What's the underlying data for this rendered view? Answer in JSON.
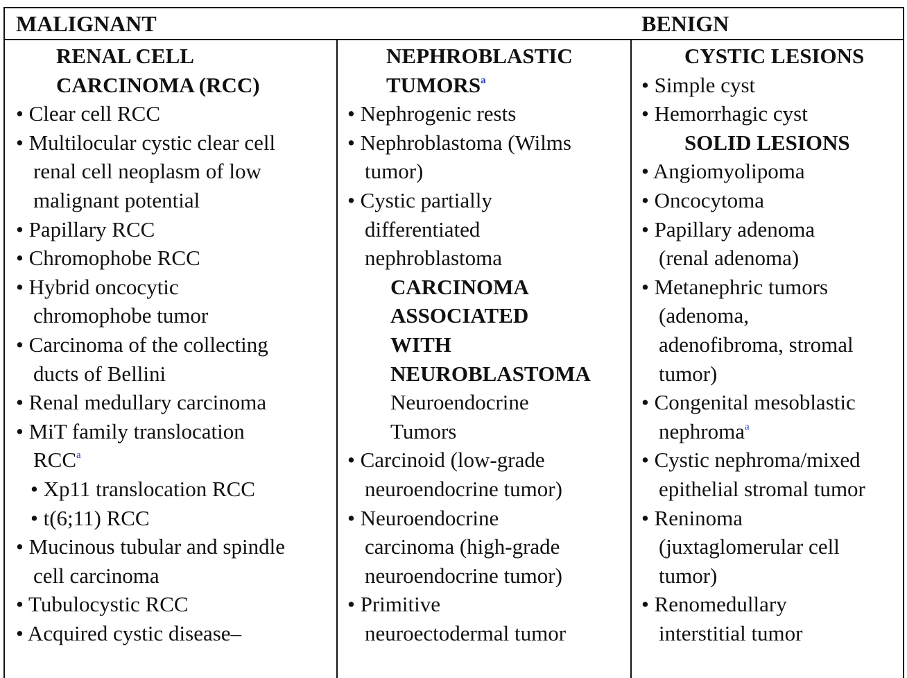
{
  "header": {
    "malignant": "MALIGNANT",
    "benign": "BENIGN"
  },
  "footnote_marker": "a",
  "col1": {
    "heading_line1": "RENAL CELL",
    "heading_line2": "CARCINOMA (RCC)",
    "l1": "• Clear cell RCC",
    "l2": "• Multilocular cystic clear cell",
    "l3": "renal cell neoplasm of low",
    "l4": "malignant potential",
    "l5": "• Papillary RCC",
    "l6": "• Chromophobe RCC",
    "l7": "• Hybrid oncocytic",
    "l8": "chromophobe tumor",
    "l9": "• Carcinoma of the collecting",
    "l10": "ducts of Bellini",
    "l11": "• Renal medullary carcinoma",
    "l12": "• MiT family translocation",
    "l13": "RCC",
    "l14": "• Xp11 translocation RCC",
    "l15": "• t(6;11) RCC",
    "l16": "• Mucinous tubular and spindle",
    "l17": "cell carcinoma",
    "l18": "• Tubulocystic RCC",
    "l19": "• Acquired cystic disease–"
  },
  "col2": {
    "heading_line1": "NEPHROBLASTIC",
    "heading_line2": "TUMORS",
    "l1": "• Nephrogenic rests",
    "l2": "• Nephroblastoma (Wilms",
    "l3": "tumor)",
    "l4": "• Cystic partially",
    "l5": "differentiated",
    "l6": "nephroblastoma",
    "h2_l1": "CARCINOMA",
    "h2_l2": "ASSOCIATED",
    "h2_l3": "WITH",
    "h2_l4": "NEUROBLASTOMA",
    "sub_l1": "Neuroendocrine",
    "sub_l2": "Tumors",
    "l7": "• Carcinoid (low-grade",
    "l8": "neuroendocrine tumor)",
    "l9": "• Neuroendocrine",
    "l10": "carcinoma (high-grade",
    "l11": "neuroendocrine tumor)",
    "l12": "• Primitive",
    "l13": "neuroectodermal tumor"
  },
  "col3": {
    "heading1": "CYSTIC LESIONS",
    "l1": "• Simple cyst",
    "l2": "• Hemorrhagic cyst",
    "heading2": "SOLID LESIONS",
    "l3": "• Angiomyolipoma",
    "l4": "• Oncocytoma",
    "l5": "• Papillary adenoma",
    "l6": "(renal adenoma)",
    "l7": "• Metanephric tumors",
    "l8": "(adenoma,",
    "l9": "adenofibroma, stromal",
    "l10": "tumor)",
    "l11": "• Congenital mesoblastic",
    "l12": "nephroma",
    "l13": "• Cystic nephroma/mixed",
    "l14": "epithelial stromal tumor",
    "l15": "• Reninoma",
    "l16": "(juxtaglomerular cell",
    "l17": "tumor)",
    "l18": "• Renomedullary",
    "l19": "interstitial tumor"
  }
}
